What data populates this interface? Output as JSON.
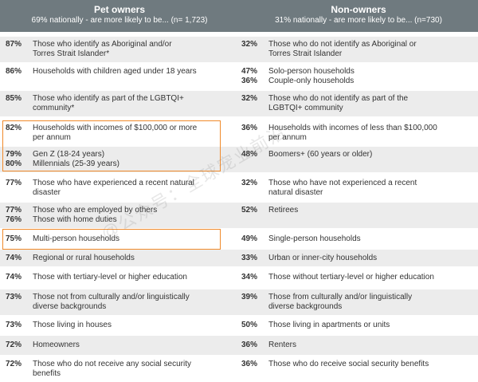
{
  "header": {
    "left_title": "Pet owners",
    "left_sub": "69% nationally - are more likely to be... (n= 1,723)",
    "right_title": "Non-owners",
    "right_sub": "31% nationally - are more likely to be... (n=730)",
    "header_color": "#6f7a7f",
    "highlight_color": "#f08a2b"
  },
  "rows": [
    {
      "left": [
        {
          "pct": "87%",
          "text": "Those who identify as Aboriginal and/or"
        },
        {
          "pct": "",
          "text": "Torres Strait Islander*"
        }
      ],
      "right": [
        {
          "pct": "32%",
          "text": "Those who do not identify as Aboriginal or"
        },
        {
          "pct": "",
          "text": "Torres Strait Islander"
        }
      ]
    },
    {
      "left": [
        {
          "pct": "86%",
          "text": "Households with children aged under 18 years"
        }
      ],
      "right": [
        {
          "pct": "47%",
          "text": "Solo-person households"
        },
        {
          "pct": "36%",
          "text": "Couple-only households"
        }
      ]
    },
    {
      "left": [
        {
          "pct": "85%",
          "text": "Those who identify as part of the LGBTQI+"
        },
        {
          "pct": "",
          "text": "community*"
        }
      ],
      "right": [
        {
          "pct": "32%",
          "text": "Those who do not identify as part of the"
        },
        {
          "pct": "",
          "text": "LGBTQI+ community"
        }
      ]
    },
    {
      "left": [
        {
          "pct": "82%",
          "text": "Households with incomes of $100,000 or more"
        },
        {
          "pct": "",
          "text": "per annum"
        }
      ],
      "right": [
        {
          "pct": "36%",
          "text": "Households with incomes of less than $100,000"
        },
        {
          "pct": "",
          "text": "per annum"
        }
      ]
    },
    {
      "left": [
        {
          "pct": "79%",
          "text": "Gen Z (18-24 years)"
        },
        {
          "pct": "80%",
          "text": "Millennials (25-39 years)"
        }
      ],
      "right": [
        {
          "pct": "48%",
          "text": "Boomers+ (60 years or older)"
        }
      ]
    },
    {
      "left": [
        {
          "pct": "77%",
          "text": "Those who have experienced a recent natural"
        },
        {
          "pct": "",
          "text": "disaster"
        }
      ],
      "right": [
        {
          "pct": "32%",
          "text": "Those who have not experienced a recent"
        },
        {
          "pct": "",
          "text": "natural disaster"
        }
      ]
    },
    {
      "left": [
        {
          "pct": "77%",
          "text": "Those who are employed by others"
        },
        {
          "pct": "76%",
          "text": "Those with home duties"
        }
      ],
      "right": [
        {
          "pct": "52%",
          "text": "Retirees"
        }
      ]
    },
    {
      "left": [
        {
          "pct": "75%",
          "text": "Multi-person households"
        }
      ],
      "right": [
        {
          "pct": "49%",
          "text": "Single-person households"
        }
      ]
    },
    {
      "left": [
        {
          "pct": "74%",
          "text": "Regional or rural households"
        }
      ],
      "right": [
        {
          "pct": "33%",
          "text": "Urban or inner-city households"
        }
      ]
    },
    {
      "left": [
        {
          "pct": "74%",
          "text": "Those with tertiary-level or higher education"
        }
      ],
      "right": [
        {
          "pct": "34%",
          "text": "Those without tertiary-level or higher education"
        }
      ]
    },
    {
      "left": [
        {
          "pct": "73%",
          "text": "Those not from culturally and/or linguistically"
        },
        {
          "pct": "",
          "text": "diverse backgrounds"
        }
      ],
      "right": [
        {
          "pct": "39%",
          "text": "Those from culturally and/or linguistically"
        },
        {
          "pct": "",
          "text": "diverse backgrounds"
        }
      ]
    },
    {
      "left": [
        {
          "pct": "73%",
          "text": "Those living in houses"
        }
      ],
      "right": [
        {
          "pct": "50%",
          "text": "Those living in apartments or units"
        }
      ]
    },
    {
      "left": [
        {
          "pct": "72%",
          "text": "Homeowners"
        }
      ],
      "right": [
        {
          "pct": "36%",
          "text": "Renters"
        }
      ]
    },
    {
      "left": [
        {
          "pct": "72%",
          "text": "Those who do not receive any social security"
        },
        {
          "pct": "",
          "text": "benefits"
        }
      ],
      "right": [
        {
          "pct": "36%",
          "text": "Those who do receive social security benefits"
        }
      ]
    }
  ],
  "watermark": "@公众号：全球宠业前沿"
}
